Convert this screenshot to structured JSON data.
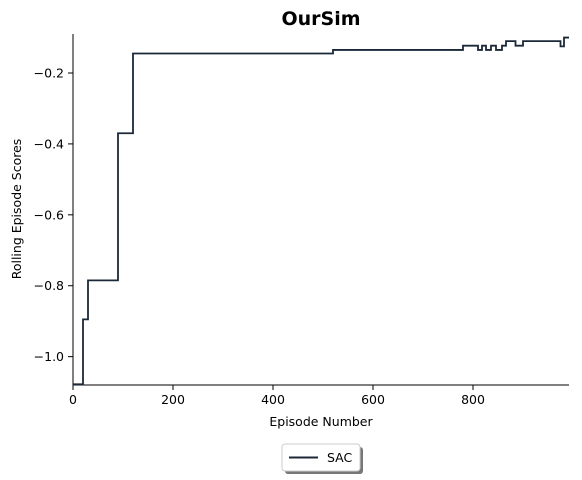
{
  "chart_data": {
    "type": "line",
    "title": "OurSim",
    "xlabel": "Episode Number",
    "ylabel": "Rolling Episode Scores",
    "xlim": [
      0,
      992
    ],
    "ylim": [
      -1.08,
      -0.09
    ],
    "xticks": [
      0,
      200,
      400,
      600,
      800
    ],
    "xtick_labels": [
      "0",
      "200",
      "400",
      "600",
      "800"
    ],
    "yticks": [
      -1.0,
      -0.8,
      -0.6,
      -0.4,
      -0.2
    ],
    "ytick_labels": [
      "−1.0",
      "−0.8",
      "−0.6",
      "−0.4",
      "−0.2"
    ],
    "grid": false,
    "legend_position": "bottom-center",
    "series": [
      {
        "name": "SAC",
        "color": "#1b2838",
        "step": true,
        "points": [
          [
            0,
            -1.078
          ],
          [
            20,
            -1.078
          ],
          [
            20,
            -0.895
          ],
          [
            30,
            -0.895
          ],
          [
            30,
            -0.785
          ],
          [
            90,
            -0.785
          ],
          [
            90,
            -0.37
          ],
          [
            120,
            -0.37
          ],
          [
            120,
            -0.145
          ],
          [
            520,
            -0.145
          ],
          [
            520,
            -0.135
          ],
          [
            780,
            -0.135
          ],
          [
            780,
            -0.123
          ],
          [
            810,
            -0.123
          ],
          [
            810,
            -0.135
          ],
          [
            818,
            -0.135
          ],
          [
            818,
            -0.123
          ],
          [
            826,
            -0.123
          ],
          [
            826,
            -0.135
          ],
          [
            836,
            -0.135
          ],
          [
            836,
            -0.123
          ],
          [
            846,
            -0.123
          ],
          [
            846,
            -0.135
          ],
          [
            858,
            -0.135
          ],
          [
            858,
            -0.123
          ],
          [
            866,
            -0.123
          ],
          [
            866,
            -0.11
          ],
          [
            885,
            -0.11
          ],
          [
            885,
            -0.123
          ],
          [
            900,
            -0.123
          ],
          [
            900,
            -0.11
          ],
          [
            975,
            -0.11
          ],
          [
            975,
            -0.125
          ],
          [
            982,
            -0.125
          ],
          [
            982,
            -0.1
          ],
          [
            992,
            -0.1
          ]
        ]
      }
    ]
  }
}
